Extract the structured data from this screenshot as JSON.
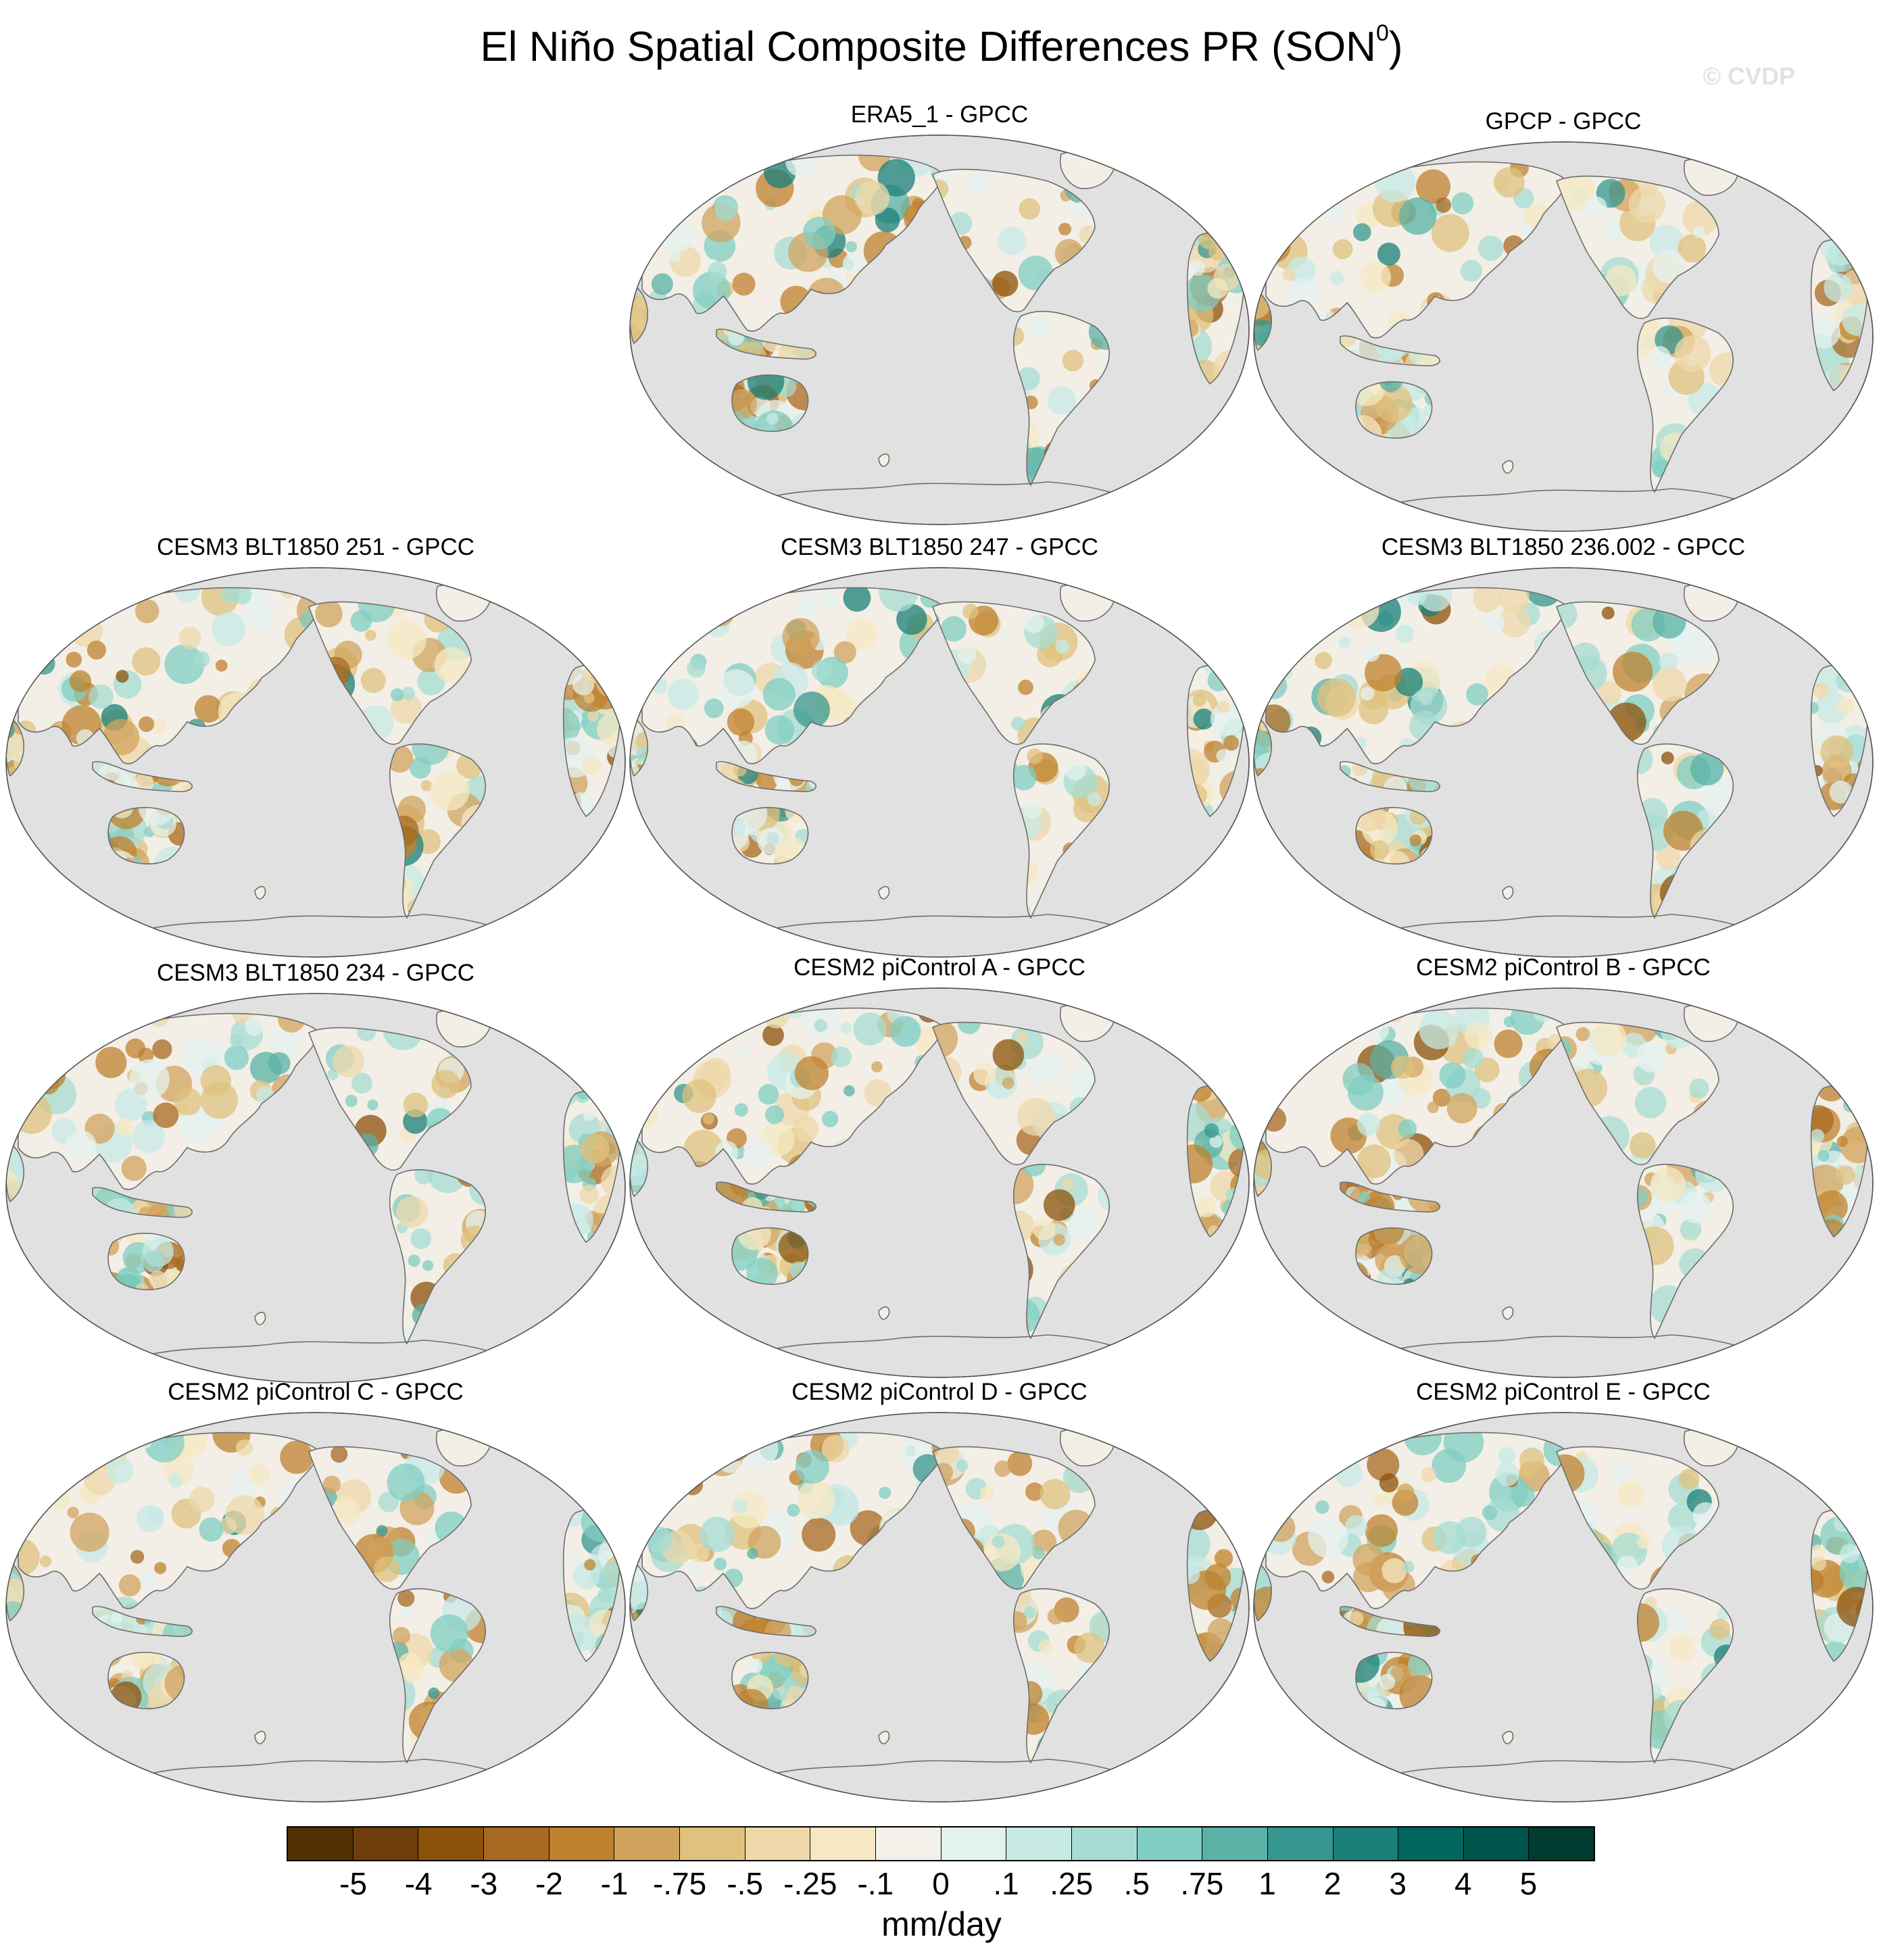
{
  "figure": {
    "title": "El Niño Spatial Composite Differences PR (SON",
    "title_superscript": "0",
    "title_close": ")",
    "watermark": "© CVDP"
  },
  "panels": [
    {
      "title": "ERA5_1 - GPCC"
    },
    {
      "title": "GPCP - GPCC"
    },
    {
      "title": "CESM3 BLT1850 251 - GPCC"
    },
    {
      "title": "CESM3 BLT1850 247 - GPCC"
    },
    {
      "title": "CESM3 BLT1850 236.002 - GPCC"
    },
    {
      "title": "CESM3 BLT1850 234 - GPCC"
    },
    {
      "title": "CESM2 piControl A - GPCC"
    },
    {
      "title": "CESM2 piControl B - GPCC"
    },
    {
      "title": "CESM2 piControl C - GPCC"
    },
    {
      "title": "CESM2 piControl D - GPCC"
    },
    {
      "title": "CESM2 piControl E - GPCC"
    }
  ],
  "map_style": {
    "ocean_color": "#e1e1e1",
    "coast_color": "#6e6e6e",
    "land_base_color": "#f3efe6"
  },
  "colorbar": {
    "units": "mm/day",
    "colors": [
      "#543005",
      "#6f3d0b",
      "#8c510a",
      "#a86922",
      "#bf812d",
      "#d1a35e",
      "#dfc27d",
      "#eed8a9",
      "#f6e8c3",
      "#f4f1eb",
      "#e4f2ef",
      "#c7eae5",
      "#a6dcd3",
      "#80cdc1",
      "#5ab2a6",
      "#35978f",
      "#1a7f78",
      "#01665e",
      "#01544b",
      "#003c30"
    ],
    "labels": [
      "-5",
      "-4",
      "-3",
      "-2",
      "-1",
      "-.75",
      "-.5",
      "-.25",
      "-.1",
      "0",
      ".1",
      ".25",
      ".5",
      ".75",
      "1",
      "2",
      "3",
      "4",
      "5"
    ]
  }
}
